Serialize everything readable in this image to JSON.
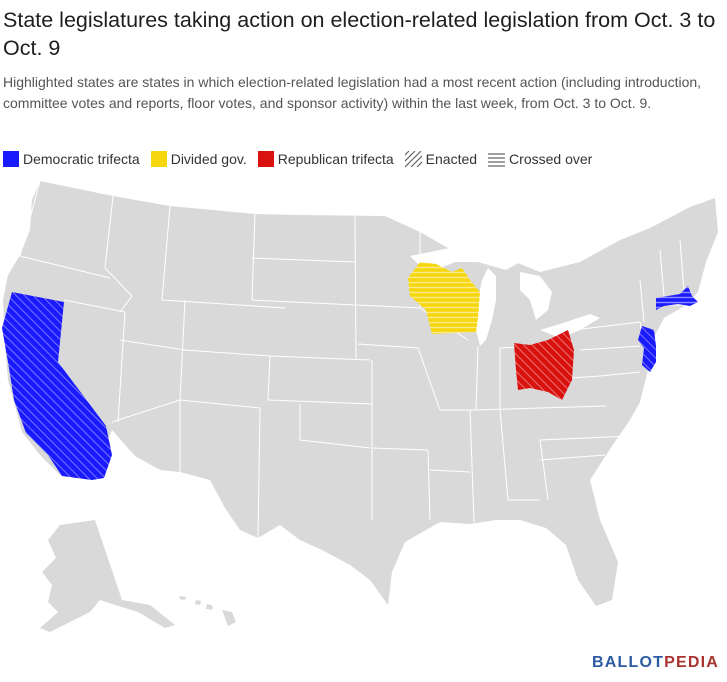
{
  "title": "State legislatures taking action on election-related legislation from Oct. 3 to Oct. 9",
  "subtitle": "Highlighted states are states in which election-related legislation had a most recent action (including introduction, committee votes and reports, floor votes, and sponsor activity) within the last week, from Oct. 3 to Oct. 9.",
  "legend": {
    "democratic": "Democratic trifecta",
    "divided": "Divided gov.",
    "republican": "Republican trifecta",
    "enacted": "Enacted",
    "crossed": "Crossed over"
  },
  "colors": {
    "democratic": "#1a1aff",
    "divided": "#f6d60e",
    "republican": "#d9110f",
    "base_state": "#d9d9d9",
    "border": "#ffffff"
  },
  "highlighted_states": [
    {
      "state": "California",
      "party": "democratic",
      "status": "enacted"
    },
    {
      "state": "Wisconsin",
      "party": "divided",
      "status": "crossed"
    },
    {
      "state": "Ohio",
      "party": "republican",
      "status": "enacted"
    },
    {
      "state": "New Jersey",
      "party": "democratic",
      "status": "enacted"
    },
    {
      "state": "Massachusetts",
      "party": "democratic",
      "status": "crossed"
    }
  ],
  "brand": {
    "part1": "BALLOT",
    "part2": "PEDIA"
  }
}
